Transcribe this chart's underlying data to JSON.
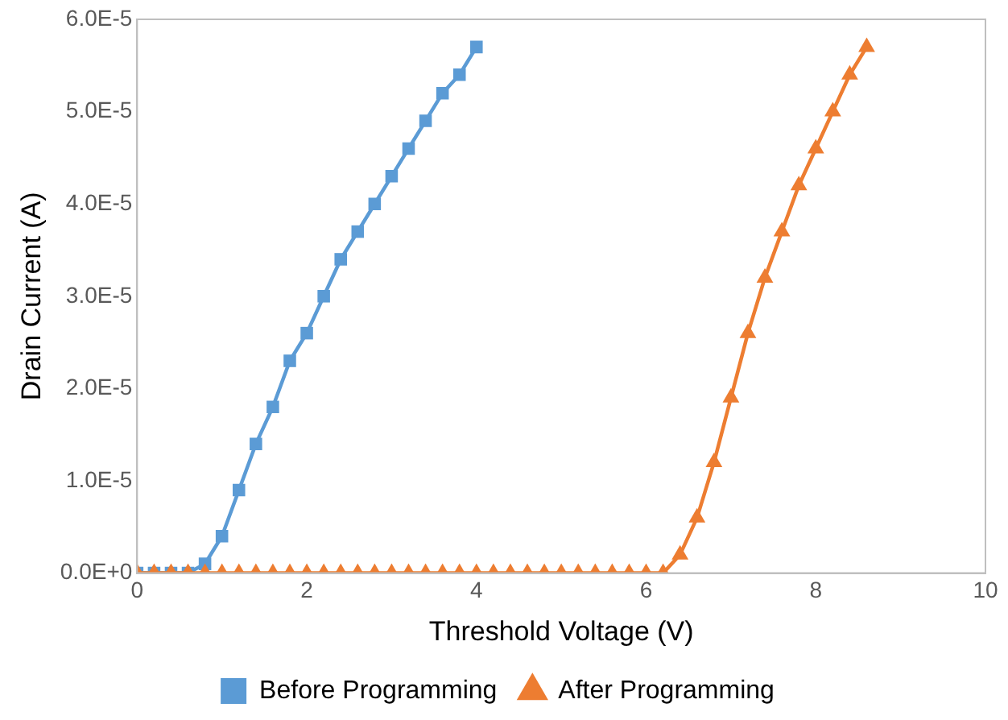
{
  "chart_data": {
    "type": "line",
    "xlabel": "Threshold Voltage (V)",
    "ylabel": "Drain Current (A)",
    "xlim": [
      0,
      10
    ],
    "xticks": [
      0,
      2,
      4,
      6,
      8,
      10
    ],
    "ylim": [
      0,
      6e-05
    ],
    "yticks": [
      {
        "value": 0,
        "label": "0.0E+0"
      },
      {
        "value": 1e-05,
        "label": "1.0E-5"
      },
      {
        "value": 2e-05,
        "label": "2.0E-5"
      },
      {
        "value": 3e-05,
        "label": "3.0E-5"
      },
      {
        "value": 4e-05,
        "label": "4.0E-5"
      },
      {
        "value": 5e-05,
        "label": "5.0E-5"
      },
      {
        "value": 6e-05,
        "label": "6.0E-5"
      }
    ],
    "grid": false,
    "legend": "bottom",
    "line_style": "solid",
    "series": [
      {
        "name": "Before Programming",
        "color": "#5b9bd5",
        "marker": "square",
        "x": [
          0,
          0.2,
          0.4,
          0.6,
          0.8,
          1,
          1.2,
          1.4,
          1.6,
          1.8,
          2,
          2.2,
          2.4,
          2.6,
          2.8,
          3,
          3.2,
          3.4,
          3.6,
          3.8,
          4
        ],
        "values": [
          0,
          0,
          0,
          0,
          1e-06,
          4e-06,
          9e-06,
          1.4e-05,
          1.8e-05,
          2.3e-05,
          2.6e-05,
          3e-05,
          3.4e-05,
          3.7e-05,
          4e-05,
          4.3e-05,
          4.6e-05,
          4.9e-05,
          5.2e-05,
          5.4e-05,
          5.7e-05
        ]
      },
      {
        "name": "After Programming",
        "color": "#ed7d31",
        "marker": "triangle",
        "x": [
          0,
          0.2,
          0.4,
          0.6,
          0.8,
          1,
          1.2,
          1.4,
          1.6,
          1.8,
          2,
          2.2,
          2.4,
          2.6,
          2.8,
          3,
          3.2,
          3.4,
          3.6,
          3.8,
          4,
          4.2,
          4.4,
          4.6,
          4.8,
          5,
          5.2,
          5.4,
          5.6,
          5.8,
          6,
          6.2,
          6.4,
          6.6,
          6.8,
          7,
          7.2,
          7.4,
          7.6,
          7.8,
          8,
          8.2,
          8.4,
          8.6
        ],
        "values": [
          0,
          0,
          0,
          0,
          0,
          0,
          0,
          0,
          0,
          0,
          0,
          0,
          0,
          0,
          0,
          0,
          0,
          0,
          0,
          0,
          0,
          0,
          0,
          0,
          0,
          0,
          0,
          0,
          0,
          0,
          0,
          0,
          2e-06,
          6e-06,
          1.2e-05,
          1.9e-05,
          2.6e-05,
          3.2e-05,
          3.7e-05,
          4.2e-05,
          4.6e-05,
          5e-05,
          5.4e-05,
          5.7e-05
        ]
      }
    ]
  }
}
